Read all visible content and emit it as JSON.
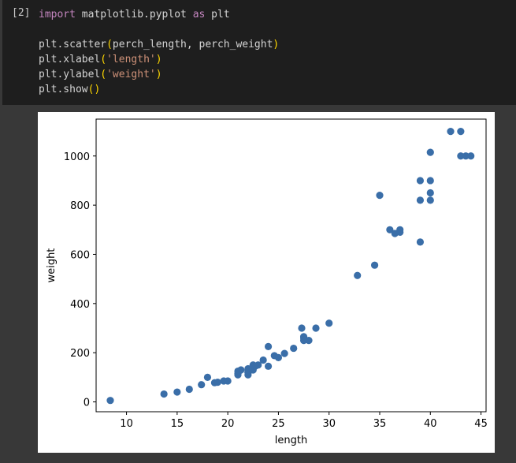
{
  "cell": {
    "execution_count": "[2]",
    "code": {
      "import_kw": "import",
      "import_module": " matplotlib.pyplot ",
      "as_kw": "as",
      "import_alias": " plt",
      "line_scatter_fn": "plt.scatter",
      "line_scatter_args": "perch_length, perch_weight",
      "line_xlabel_fn": "plt.xlabel",
      "line_xlabel_arg": "'length'",
      "line_ylabel_fn": "plt.ylabel",
      "line_ylabel_arg": "'weight'",
      "line_show_fn": "plt.show"
    }
  },
  "colors": {
    "marker": "#3a6ea8",
    "editor_bg": "#1e1e1e",
    "output_bg": "#383838"
  },
  "chart_data": {
    "type": "scatter",
    "title": "",
    "xlabel": "length",
    "ylabel": "weight",
    "xlim": [
      7,
      45.5
    ],
    "ylim": [
      -40,
      1150
    ],
    "xticks": [
      10,
      15,
      20,
      25,
      30,
      35,
      40,
      45
    ],
    "yticks": [
      0,
      200,
      400,
      600,
      800,
      1000
    ],
    "grid": false,
    "x": [
      8.4,
      13.7,
      15.0,
      16.2,
      17.4,
      18.0,
      18.7,
      19.0,
      19.6,
      20.0,
      21.0,
      21.0,
      21.0,
      21.3,
      22.0,
      22.0,
      22.0,
      22.0,
      22.0,
      22.5,
      22.5,
      22.7,
      23.0,
      23.5,
      24.0,
      24.0,
      24.6,
      25.0,
      25.6,
      26.5,
      27.3,
      27.5,
      27.5,
      27.5,
      28.0,
      28.7,
      30.0,
      32.8,
      34.5,
      35.0,
      36.5,
      36.0,
      37.0,
      37.0,
      39.0,
      39.0,
      39.0,
      40.0,
      40.0,
      40.0,
      40.0,
      42.0,
      43.0,
      43.0,
      43.5,
      44.0
    ],
    "y": [
      5.9,
      32.0,
      40.0,
      51.5,
      70.0,
      100.0,
      78.0,
      80.0,
      85.0,
      85.0,
      110.0,
      115.0,
      125.0,
      130.0,
      120.0,
      120.0,
      130.0,
      135.0,
      110.0,
      130.0,
      150.0,
      145.0,
      150.0,
      170.0,
      225.0,
      145.0,
      188.0,
      180.0,
      197.0,
      218.0,
      300.0,
      260.0,
      265.0,
      250.0,
      250.0,
      300.0,
      320.0,
      514.0,
      556.0,
      840.0,
      685.0,
      700.0,
      700.0,
      690.0,
      900.0,
      650.0,
      820.0,
      850.0,
      900.0,
      1015.0,
      820.0,
      1100.0,
      1000.0,
      1100.0,
      1000.0,
      1000.0
    ]
  }
}
